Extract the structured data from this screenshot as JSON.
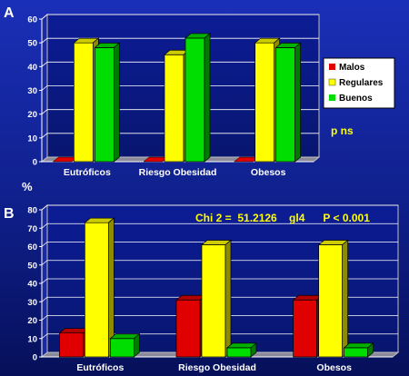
{
  "colors": {
    "malos": "#e00000",
    "regulares": "#ffff00",
    "buenos": "#00dd00",
    "background": "#1427a8",
    "plot_area": "#0a1a8a",
    "annotation": "#ffff00"
  },
  "chart_data": [
    {
      "type": "bar",
      "panel_label": "A",
      "categories": [
        "Eutróficos",
        "Riesgo Obesidad",
        "Obesos"
      ],
      "series": [
        {
          "name": "Malos",
          "values": [
            0,
            0,
            0
          ]
        },
        {
          "name": "Regulares",
          "values": [
            50,
            45,
            50
          ]
        },
        {
          "name": "Buenos",
          "values": [
            48,
            52,
            48
          ]
        }
      ],
      "ylim": [
        0,
        60
      ],
      "yticks": [
        0,
        10,
        20,
        30,
        40,
        50,
        60
      ],
      "ylabel": "%",
      "grid": true,
      "legend": "right",
      "annotation": "p ns"
    },
    {
      "type": "bar",
      "panel_label": "B",
      "categories": [
        "Eutróficos",
        "Riesgo Obesidad",
        "Obesos"
      ],
      "series": [
        {
          "name": "Malos",
          "values": [
            13,
            31,
            31
          ]
        },
        {
          "name": "Regulares",
          "values": [
            73,
            61,
            61
          ]
        },
        {
          "name": "Buenos",
          "values": [
            10,
            5,
            5
          ]
        }
      ],
      "ylim": [
        0,
        80
      ],
      "yticks": [
        0,
        10,
        20,
        30,
        40,
        50,
        60,
        70,
        80
      ],
      "grid": true,
      "annotation": "Chi 2 =  51.2126    gl4      P < 0.001"
    }
  ]
}
